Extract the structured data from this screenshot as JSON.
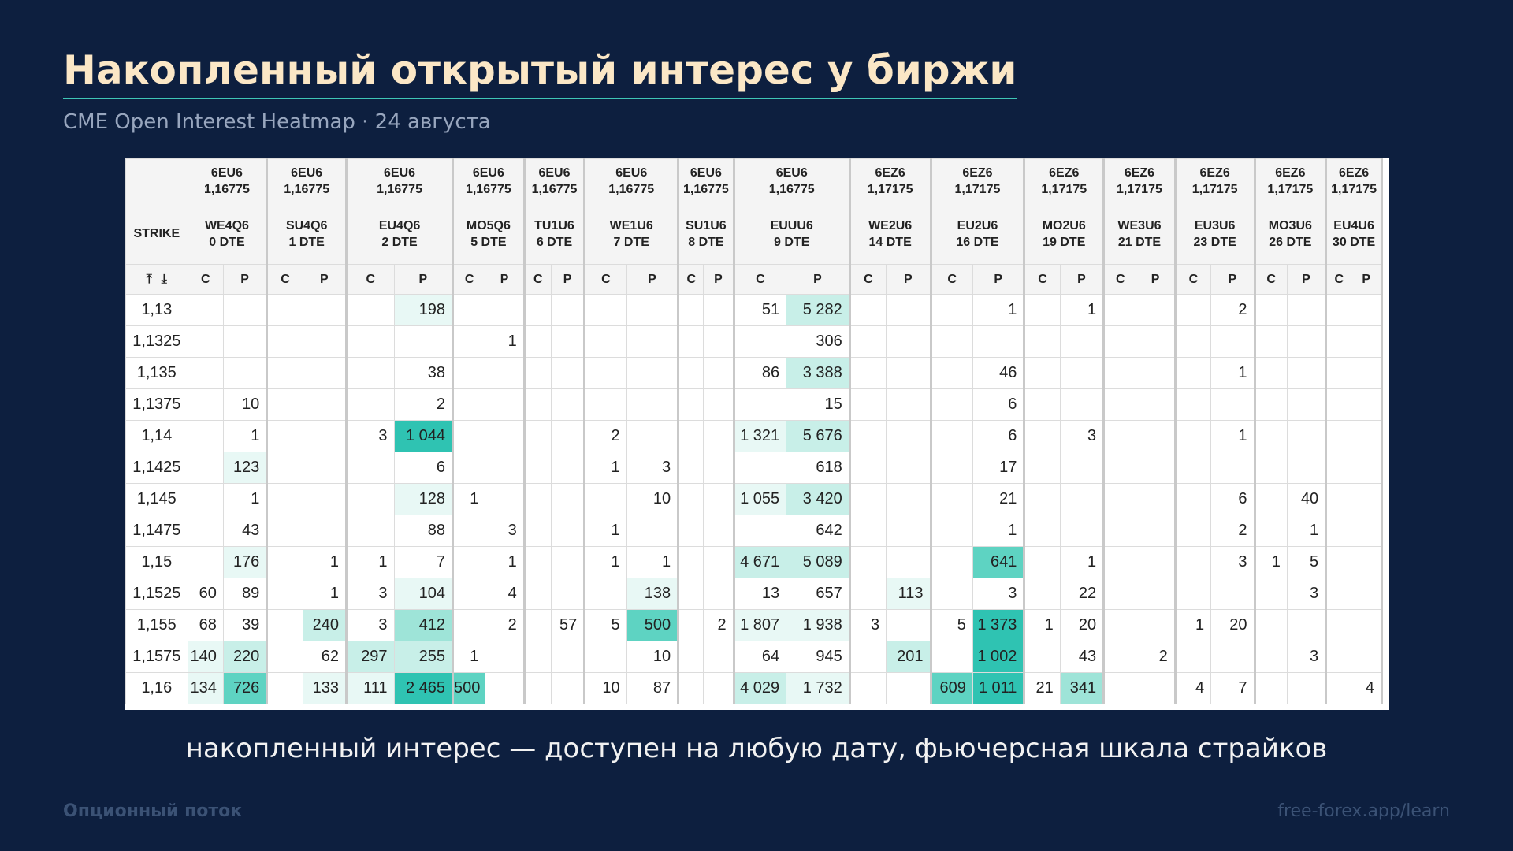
{
  "slide": {
    "title": "Накопленный открытый интерес у биржи",
    "subtitle": "CME Open Interest Heatmap · 24 августа",
    "caption": "накопленный интерес — доступен на любую дату, фьючерсная шкала страйков",
    "footer_left": "Опционный поток",
    "footer_right": "free-forex.app/learn"
  },
  "table": {
    "strike_label": "STRIKE",
    "sort_up_icon": "⤒",
    "sort_down_icon": "⤓",
    "call_label": "C",
    "put_label": "P",
    "groups": [
      {
        "fut": "6EU6",
        "price": "1,16775",
        "exp": "WE4Q6",
        "dte": "0 DTE"
      },
      {
        "fut": "6EU6",
        "price": "1,16775",
        "exp": "SU4Q6",
        "dte": "1 DTE"
      },
      {
        "fut": "6EU6",
        "price": "1,16775",
        "exp": "EU4Q6",
        "dte": "2 DTE"
      },
      {
        "fut": "6EU6",
        "price": "1,16775",
        "exp": "MO5Q6",
        "dte": "5 DTE"
      },
      {
        "fut": "6EU6",
        "price": "1,16775",
        "exp": "TU1U6",
        "dte": "6 DTE"
      },
      {
        "fut": "6EU6",
        "price": "1,16775",
        "exp": "WE1U6",
        "dte": "7 DTE"
      },
      {
        "fut": "6EU6",
        "price": "1,16775",
        "exp": "SU1U6",
        "dte": "8 DTE"
      },
      {
        "fut": "6EU6",
        "price": "1,16775",
        "exp": "EUUU6",
        "dte": "9 DTE"
      },
      {
        "fut": "6EZ6",
        "price": "1,17175",
        "exp": "WE2U6",
        "dte": "14 DTE"
      },
      {
        "fut": "6EZ6",
        "price": "1,17175",
        "exp": "EU2U6",
        "dte": "16 DTE"
      },
      {
        "fut": "6EZ6",
        "price": "1,17175",
        "exp": "MO2U6",
        "dte": "19 DTE"
      },
      {
        "fut": "6EZ6",
        "price": "1,17175",
        "exp": "WE3U6",
        "dte": "21 DTE"
      },
      {
        "fut": "6EZ6",
        "price": "1,17175",
        "exp": "EU3U6",
        "dte": "23 DTE"
      },
      {
        "fut": "6EZ6",
        "price": "1,17175",
        "exp": "MO3U6",
        "dte": "26 DTE"
      },
      {
        "fut": "6EZ6",
        "price": "1,17175",
        "exp": "EU4U6",
        "dte": "30 DTE"
      }
    ],
    "rows": [
      {
        "strike": "1,13",
        "cells": [
          "",
          "",
          "",
          "",
          "",
          "198",
          "",
          "",
          "",
          "",
          "",
          "",
          "",
          "",
          "51",
          "5 282",
          "",
          "",
          "",
          "1",
          "",
          "1",
          "",
          "",
          "",
          "2",
          "",
          "",
          "",
          ""
        ]
      },
      {
        "strike": "1,1325",
        "cells": [
          "",
          "",
          "",
          "",
          "",
          "",
          "",
          "1",
          "",
          "",
          "",
          "",
          "",
          "",
          "",
          "306",
          "",
          "",
          "",
          "",
          "",
          "",
          "",
          "",
          "",
          "",
          "",
          "",
          "",
          ""
        ]
      },
      {
        "strike": "1,135",
        "cells": [
          "",
          "",
          "",
          "",
          "",
          "38",
          "",
          "",
          "",
          "",
          "",
          "",
          "",
          "",
          "86",
          "3 388",
          "",
          "",
          "",
          "46",
          "",
          "",
          "",
          "",
          "",
          "1",
          "",
          "",
          "",
          ""
        ]
      },
      {
        "strike": "1,1375",
        "cells": [
          "",
          "10",
          "",
          "",
          "",
          "2",
          "",
          "",
          "",
          "",
          "",
          "",
          "",
          "",
          "",
          "15",
          "",
          "",
          "",
          "6",
          "",
          "",
          "",
          "",
          "",
          "",
          "",
          "",
          "",
          ""
        ]
      },
      {
        "strike": "1,14",
        "cells": [
          "",
          "1",
          "",
          "",
          "3",
          "1 044",
          "",
          "",
          "",
          "",
          "2",
          "",
          "",
          "",
          "1 321",
          "5 676",
          "",
          "",
          "",
          "6",
          "",
          "3",
          "",
          "",
          "",
          "1",
          "",
          "",
          "",
          ""
        ]
      },
      {
        "strike": "1,1425",
        "cells": [
          "",
          "123",
          "",
          "",
          "",
          "6",
          "",
          "",
          "",
          "",
          "1",
          "3",
          "",
          "",
          "",
          "618",
          "",
          "",
          "",
          "17",
          "",
          "",
          "",
          "",
          "",
          "",
          "",
          "",
          "",
          ""
        ]
      },
      {
        "strike": "1,145",
        "cells": [
          "",
          "1",
          "",
          "",
          "",
          "128",
          "1",
          "",
          "",
          "",
          "",
          "10",
          "",
          "",
          "1 055",
          "3 420",
          "",
          "",
          "",
          "21",
          "",
          "",
          "",
          "",
          "",
          "6",
          "",
          "40",
          "",
          ""
        ]
      },
      {
        "strike": "1,1475",
        "cells": [
          "",
          "43",
          "",
          "",
          "",
          "88",
          "",
          "3",
          "",
          "",
          "1",
          "",
          "",
          "",
          "",
          "642",
          "",
          "",
          "",
          "1",
          "",
          "",
          "",
          "",
          "",
          "2",
          "",
          "1",
          "",
          ""
        ]
      },
      {
        "strike": "1,15",
        "cells": [
          "",
          "176",
          "",
          "1",
          "1",
          "7",
          "",
          "1",
          "",
          "",
          "1",
          "1",
          "",
          "",
          "4 671",
          "5 089",
          "",
          "",
          "",
          "641",
          "",
          "1",
          "",
          "",
          "",
          "3",
          "1",
          "5",
          "",
          ""
        ]
      },
      {
        "strike": "1,1525",
        "cells": [
          "60",
          "89",
          "",
          "1",
          "3",
          "104",
          "",
          "4",
          "",
          "",
          "",
          "138",
          "",
          "",
          "13",
          "657",
          "",
          "113",
          "",
          "3",
          "",
          "22",
          "",
          "",
          "",
          "",
          "",
          "3",
          "",
          ""
        ]
      },
      {
        "strike": "1,155",
        "cells": [
          "68",
          "39",
          "",
          "240",
          "3",
          "412",
          "",
          "2",
          "",
          "57",
          "5",
          "500",
          "",
          "2",
          "1 807",
          "1 938",
          "3",
          "",
          "5",
          "1 373",
          "1",
          "20",
          "",
          "",
          "1",
          "20",
          "",
          "",
          "",
          ""
        ]
      },
      {
        "strike": "1,1575",
        "cells": [
          "140",
          "220",
          "",
          "62",
          "297",
          "255",
          "1",
          "",
          "",
          "",
          "",
          "10",
          "",
          "",
          "64",
          "945",
          "",
          "201",
          "",
          "1 002",
          "",
          "43",
          "",
          "2",
          "",
          "",
          "",
          "3",
          "",
          ""
        ]
      },
      {
        "strike": "1,16",
        "cells": [
          "134",
          "726",
          "",
          "133",
          "111",
          "2 465",
          "500",
          "",
          "",
          "",
          "10",
          "87",
          "",
          "",
          "4 029",
          "1 732",
          "",
          "",
          "609",
          "1 011",
          "21",
          "341",
          "",
          "",
          "4",
          "7",
          "",
          "",
          "",
          "4"
        ]
      }
    ],
    "heat_colors": [
      "#ffffff",
      "#e8f8f5",
      "#c8efe8",
      "#9ee4d8",
      "#5ed3c2",
      "#2fc3b2"
    ]
  }
}
